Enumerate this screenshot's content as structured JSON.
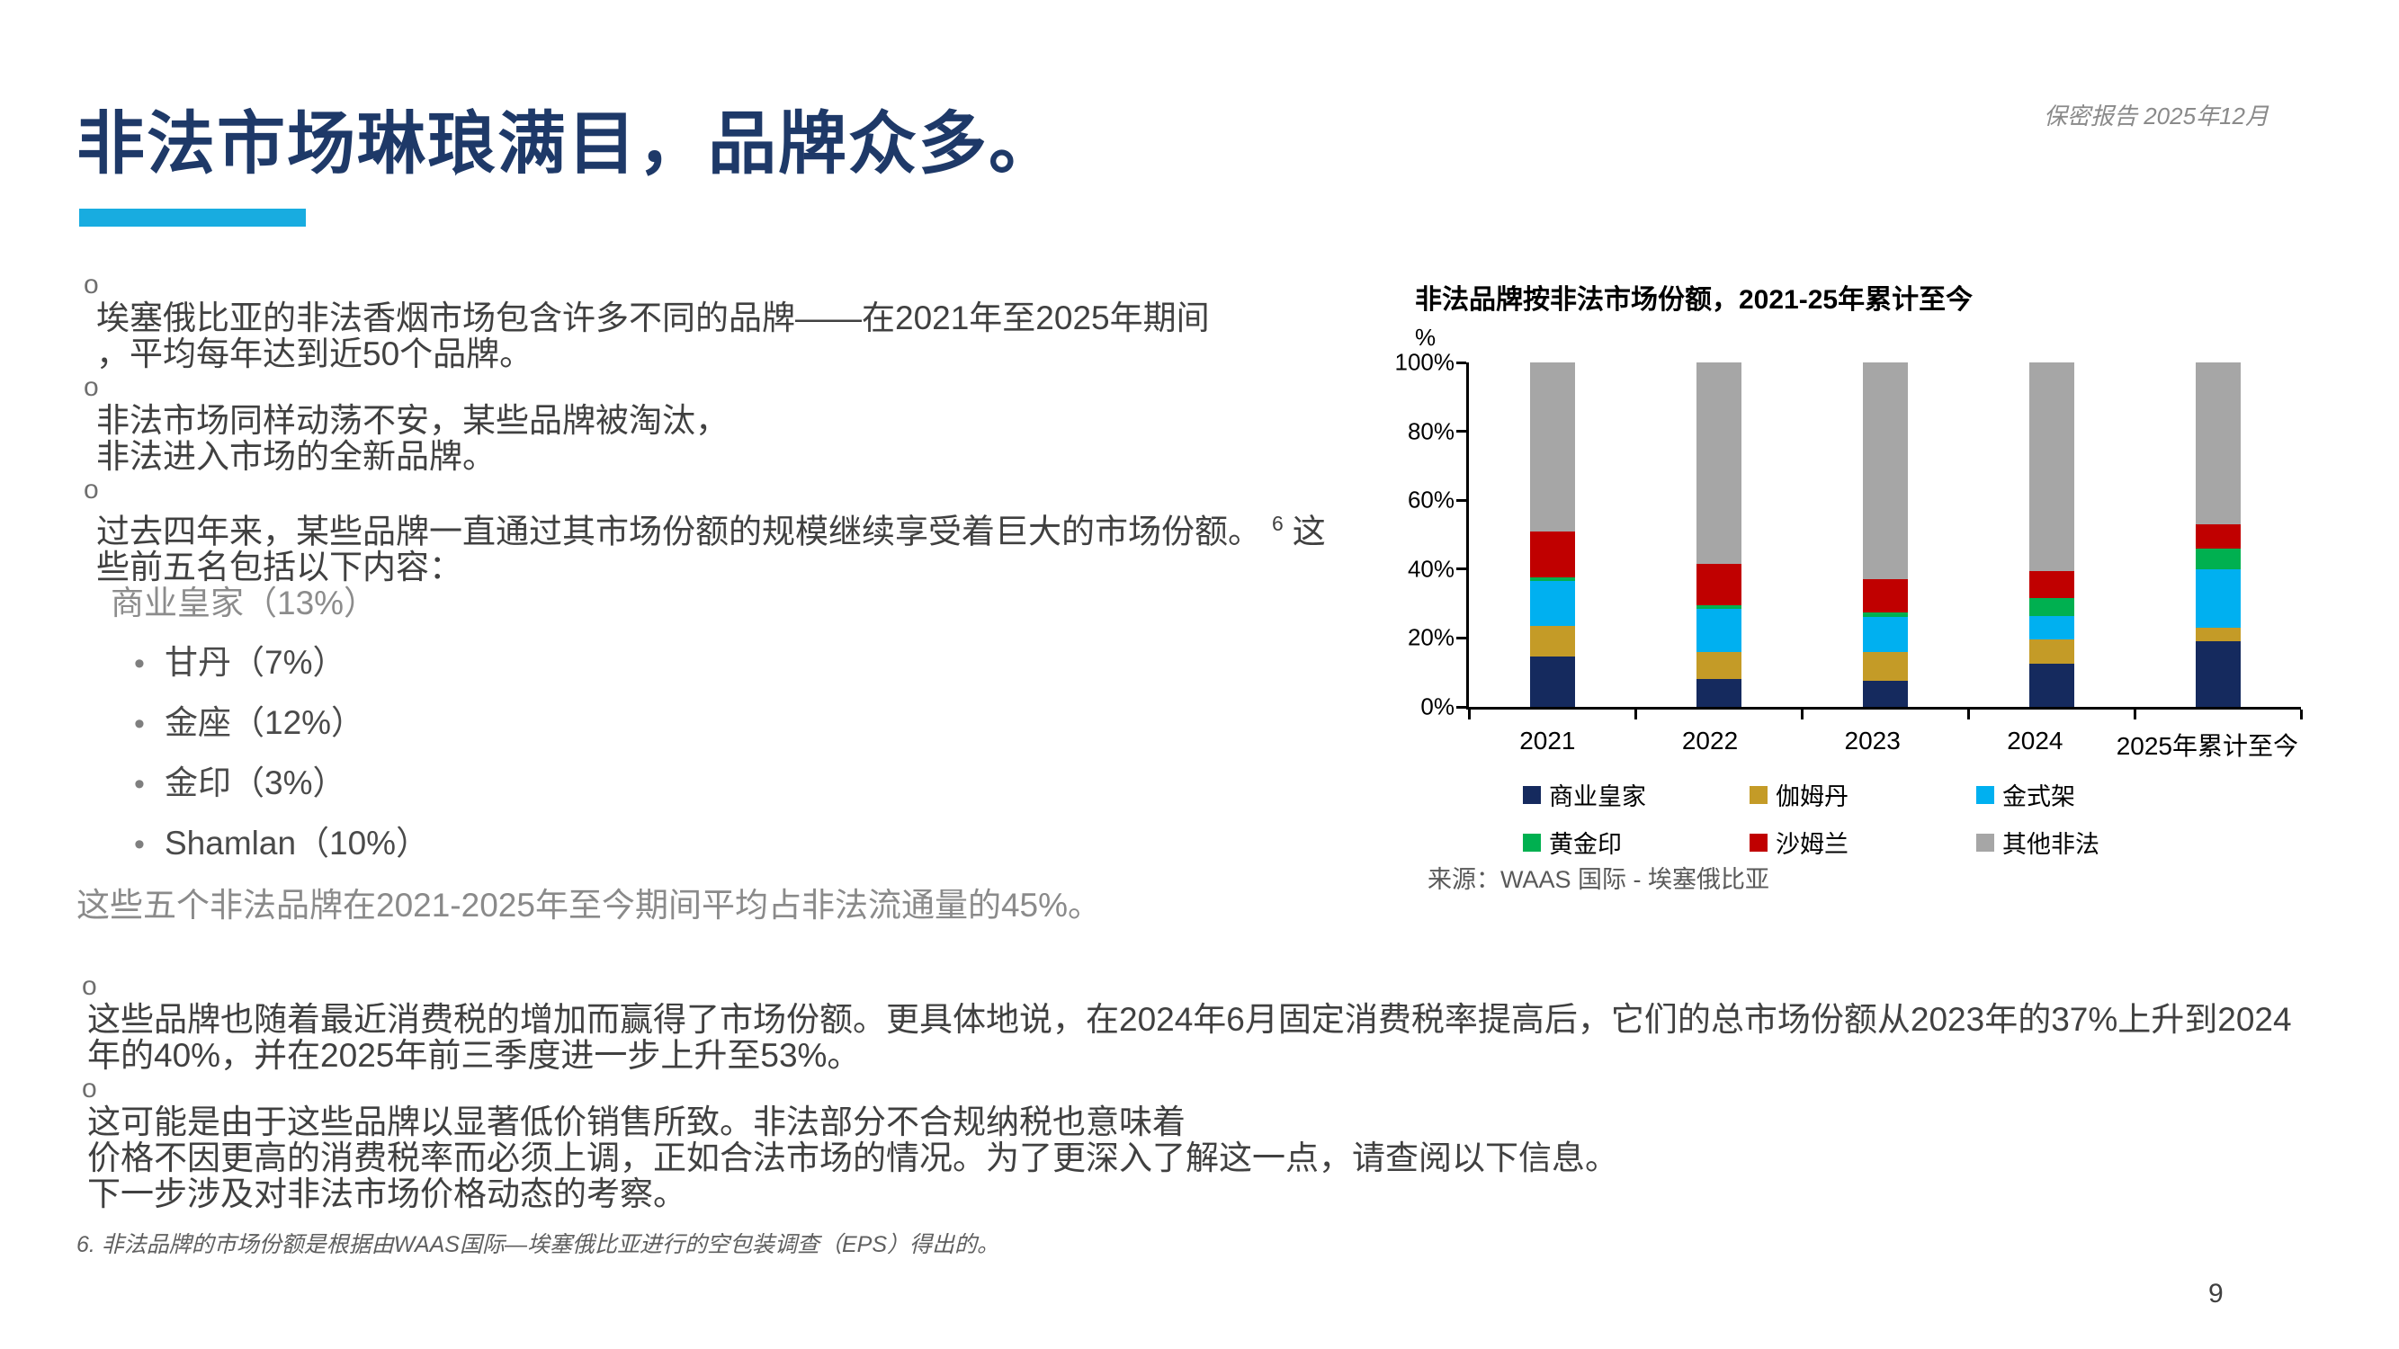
{
  "header": {
    "title": "非法市场琳琅满目，品牌众多。",
    "confidential": "保密报告 2025年12月",
    "page_number": "9"
  },
  "accent_color": "#18ace0",
  "bullets": [
    {
      "marker": "o",
      "lines": [
        "埃塞俄比亚的非法香烟市场包含许多不同的品牌——在2021年至2025年期间",
        "，平均每年达到近50个品牌。"
      ]
    },
    {
      "marker": "o",
      "lines": [
        "非法市场同样动荡不安，某些品牌被淘汰，",
        "非法进入市场的全新品牌。"
      ]
    },
    {
      "marker": "o",
      "line1_pre": "过去四年来，某些品牌一直通过其市场份额的规模继续享受着巨大的市场份额。",
      "line1_sup": "6",
      "line1_tail": "这",
      "line2": "些前五名包括以下内容："
    }
  ],
  "top_brand": "商业皇家（13%）",
  "brand_bullet": "•",
  "brand_items": [
    "甘丹（7%）",
    "金座（12%）",
    "金印（3%）",
    "Shamlan（10%）"
  ],
  "summary_line": "这些五个非法品牌在2021-2025年至今期间平均占非法流通量的45%。",
  "bottom_bullets": [
    {
      "marker": "o",
      "lines": [
        "这些品牌也随着最近消费税的增加而赢得了市场份额。更具体地说，在2024年6月固定消费税率提高后，它们的总市场份额从2023年的37%上升到2024",
        "年的40%，并在2025年前三季度进一步上升至53%。"
      ]
    },
    {
      "marker": "o",
      "lines": [
        "这可能是由于这些品牌以显著低价销售所致。非法部分不合规纳税也意味着",
        "价格不因更高的消费税率而必须上调，正如合法市场的情况。为了更深入了解这一点，请查阅以下信息。",
        "下一步涉及对非法市场价格动态的考察。"
      ]
    }
  ],
  "footnote": "6. 非法品牌的市场份额是根据由WAAS国际—埃塞俄比亚进行的空包装调查（EPS）得出的。",
  "chart_data": {
    "type": "bar",
    "stacked": true,
    "title": "非法品牌按非法市场份额，2021-25年累计至今",
    "unit_label": "%",
    "categories": [
      "2021",
      "2022",
      "2023",
      "2024",
      "2025年累计至今"
    ],
    "series": [
      {
        "name": "商业皇家",
        "color": "#152a5e",
        "values": [
          14.5,
          8,
          7.5,
          12.5,
          19
        ]
      },
      {
        "name": "伽姆丹",
        "color": "#c49b27",
        "values": [
          9,
          8,
          8.5,
          7,
          4
        ]
      },
      {
        "name": "金式架",
        "color": "#00b0f0",
        "values": [
          13,
          12.5,
          10,
          7,
          17
        ]
      },
      {
        "name": "黄金印",
        "color": "#00b050",
        "values": [
          1,
          1,
          1.5,
          5,
          6
        ]
      },
      {
        "name": "沙姆兰",
        "color": "#c00000",
        "values": [
          13.5,
          12,
          9.5,
          8,
          7
        ]
      },
      {
        "name": "其他非法",
        "color": "#a6a6a6",
        "values": [
          49,
          58.5,
          63,
          60.5,
          47
        ]
      }
    ],
    "y_ticks": [
      "100%",
      "80%",
      "60%",
      "40%",
      "20%",
      "0%"
    ],
    "ylim": [
      0,
      100
    ],
    "grid": false,
    "legend_position": "bottom",
    "source": "来源：WAAS 国际 - 埃塞俄比亚"
  }
}
